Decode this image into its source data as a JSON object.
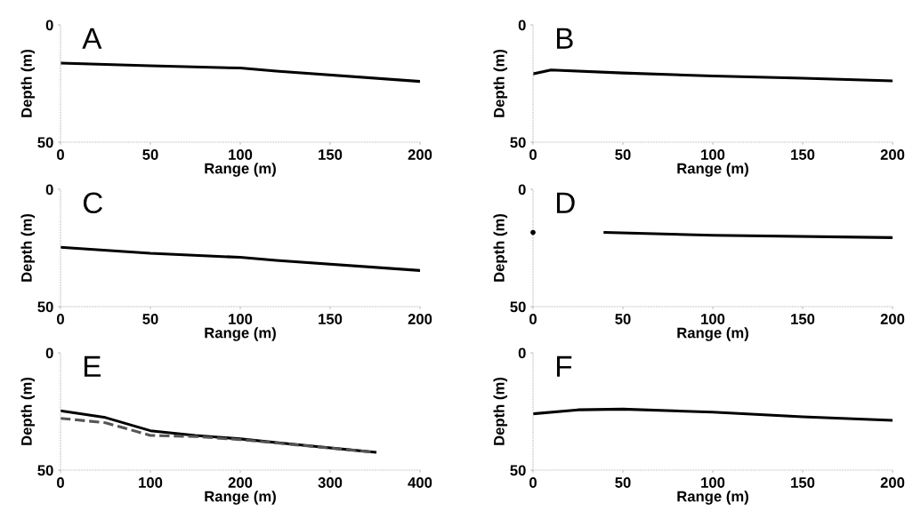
{
  "chart_data": [
    {
      "type": "line",
      "title": "A",
      "xlabel": "Range (m)",
      "ylabel": "Depth (m)",
      "xlim": [
        0,
        200
      ],
      "ylim": [
        50,
        0
      ],
      "xticks": [
        0,
        50,
        100,
        150,
        200
      ],
      "yticks": [
        0,
        50
      ],
      "grid": false,
      "series": [
        {
          "color": "#000000",
          "x": [
            0,
            50,
            100,
            120,
            200
          ],
          "values": [
            16.3,
            17.4,
            18.4,
            19.7,
            24.1
          ]
        }
      ]
    },
    {
      "type": "line",
      "title": "B",
      "xlabel": "Range (m)",
      "ylabel": "Depth (m)",
      "xlim": [
        0,
        200
      ],
      "ylim": [
        50,
        0
      ],
      "xticks": [
        0,
        50,
        100,
        150,
        200
      ],
      "yticks": [
        0,
        50
      ],
      "grid": false,
      "series": [
        {
          "color": "#000000",
          "x": [
            0,
            10,
            50,
            100,
            150,
            200
          ],
          "values": [
            20.9,
            19.2,
            20.5,
            21.8,
            22.7,
            23.9
          ]
        }
      ]
    },
    {
      "type": "line",
      "title": "C",
      "xlabel": "Range (m)",
      "ylabel": "Depth (m)",
      "xlim": [
        0,
        200
      ],
      "ylim": [
        50,
        0
      ],
      "xticks": [
        0,
        50,
        100,
        150,
        200
      ],
      "yticks": [
        0,
        50
      ],
      "grid": false,
      "series": [
        {
          "color": "#000000",
          "x": [
            0,
            50,
            100,
            120,
            200
          ],
          "values": [
            24.7,
            27.3,
            29.0,
            30.3,
            34.6
          ]
        }
      ]
    },
    {
      "type": "line",
      "title": "D",
      "xlabel": "Range (m)",
      "ylabel": "Depth (m)",
      "xlim": [
        0,
        200
      ],
      "ylim": [
        50,
        0
      ],
      "xticks": [
        0,
        50,
        100,
        150,
        200
      ],
      "yticks": [
        0,
        50
      ],
      "grid": false,
      "series": [
        {
          "type": "scatter",
          "color": "#000000",
          "x": [
            0
          ],
          "values": [
            18.4
          ]
        },
        {
          "color": "#000000",
          "x": [
            40,
            100,
            200
          ],
          "values": [
            18.4,
            19.6,
            20.6
          ]
        }
      ]
    },
    {
      "type": "line",
      "title": "E",
      "xlabel": "Range (m)",
      "ylabel": "Depth (m)",
      "xlim": [
        0,
        400
      ],
      "ylim": [
        50,
        0
      ],
      "xticks": [
        0,
        100,
        200,
        300,
        400
      ],
      "yticks": [
        0,
        50
      ],
      "grid": false,
      "series": [
        {
          "color": "#000000",
          "x": [
            0,
            50,
            100,
            150,
            200,
            250,
            350
          ],
          "values": [
            24.7,
            27.6,
            33.2,
            35.2,
            36.7,
            38.6,
            42.4
          ]
        },
        {
          "color": "#555555",
          "line_style": "dashed",
          "x": [
            0,
            50,
            100,
            150,
            200,
            250,
            350
          ],
          "values": [
            27.9,
            29.8,
            35.2,
            35.7,
            37.0,
            38.8,
            42.4
          ]
        }
      ]
    },
    {
      "type": "line",
      "title": "F",
      "xlabel": "Range (m)",
      "ylabel": "Depth (m)",
      "xlim": [
        0,
        200
      ],
      "ylim": [
        50,
        0
      ],
      "xticks": [
        0,
        50,
        100,
        150,
        200
      ],
      "yticks": [
        0,
        50
      ],
      "grid": false,
      "series": [
        {
          "color": "#000000",
          "x": [
            0,
            25,
            50,
            100,
            150,
            200
          ],
          "values": [
            26.0,
            24.3,
            24.0,
            25.3,
            27.3,
            28.8
          ]
        }
      ]
    }
  ]
}
